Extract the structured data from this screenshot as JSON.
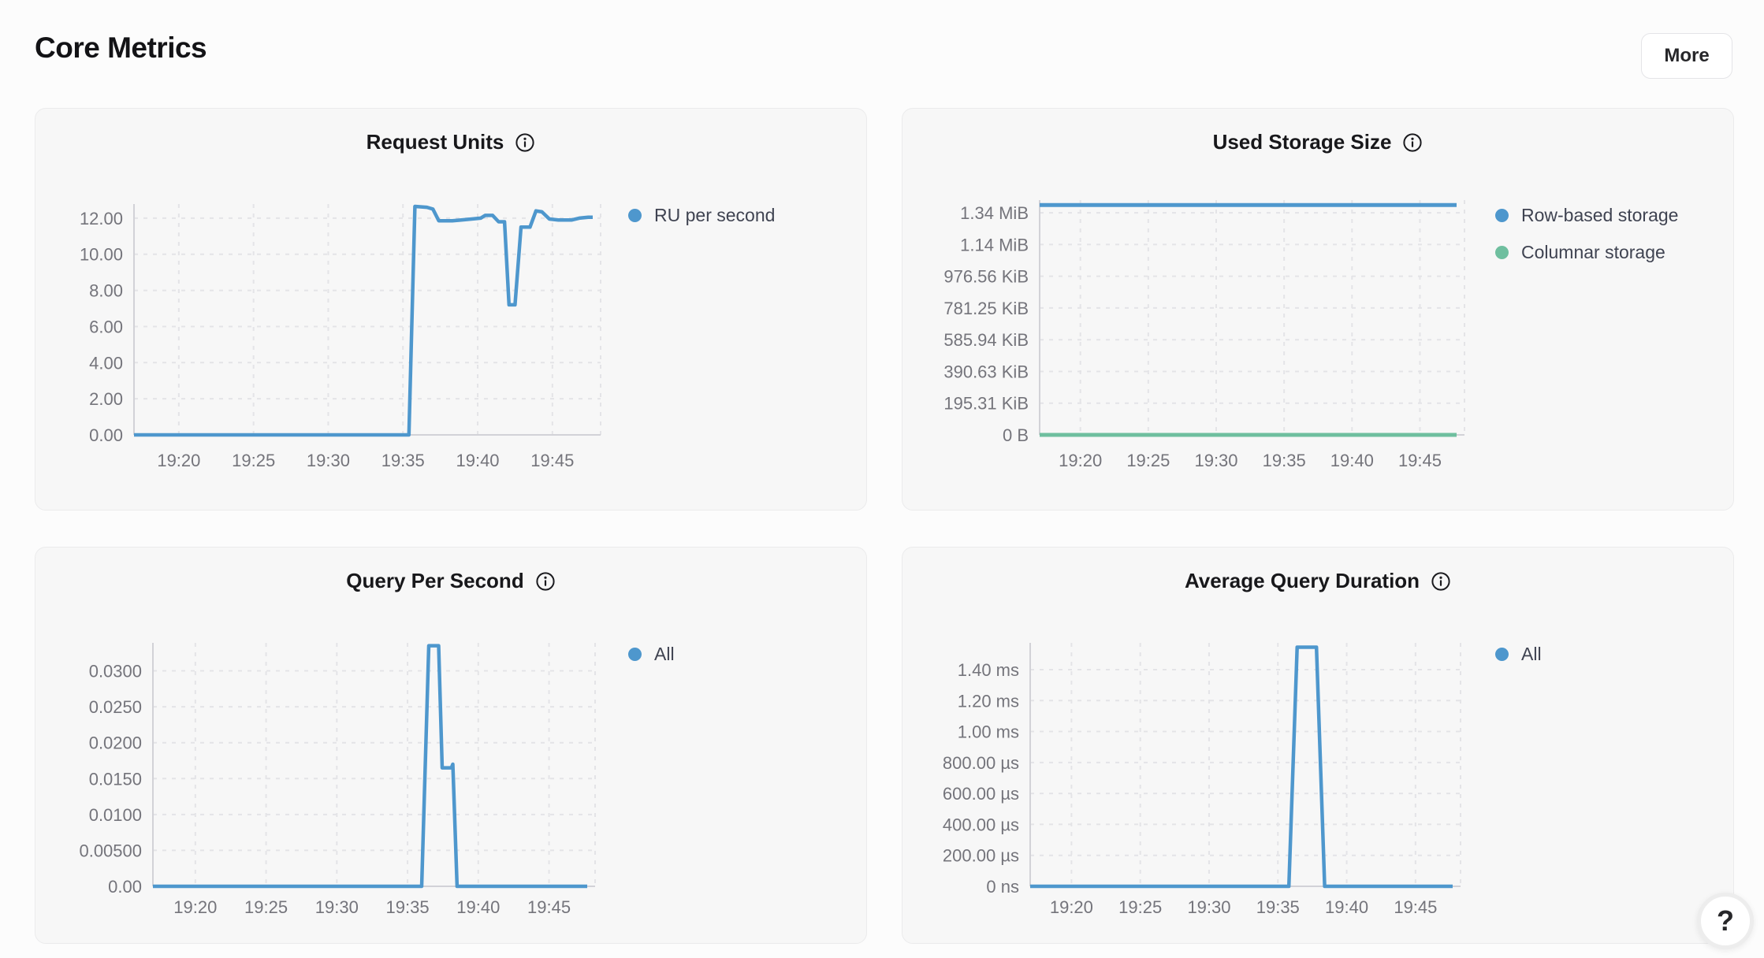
{
  "page": {
    "title": "Core Metrics",
    "more_label": "More",
    "help_label": "?"
  },
  "icons": {
    "chart_title_icon": "info-circle-icon",
    "help_icon": "question-mark"
  },
  "colors": {
    "series_blue": "#4e97cd",
    "series_green": "#6fbf9f",
    "card_bg": "#f7f7f7",
    "page_bg": "#fcfcfc",
    "axis_text": "#74747b",
    "legend_text": "#3f4351"
  },
  "chart_data": [
    {
      "id": "request-units",
      "type": "line",
      "title": "Request Units",
      "legend": [
        {
          "label": "RU per second",
          "color": "#4e97cd"
        }
      ],
      "x_domain": [
        17.0,
        47.7
      ],
      "x_ticks": [
        {
          "t": 20,
          "label": "19:20"
        },
        {
          "t": 25,
          "label": "19:25"
        },
        {
          "t": 30,
          "label": "19:30"
        },
        {
          "t": 35,
          "label": "19:35"
        },
        {
          "t": 40,
          "label": "19:40"
        },
        {
          "t": 45,
          "label": "19:45"
        }
      ],
      "y_ticks": [
        {
          "v": 0,
          "label": "0.00"
        },
        {
          "v": 2,
          "label": "2.00"
        },
        {
          "v": 4,
          "label": "4.00"
        },
        {
          "v": 6,
          "label": "6.00"
        },
        {
          "v": 8,
          "label": "8.00"
        },
        {
          "v": 10,
          "label": "10.00"
        },
        {
          "v": 12,
          "label": "12.00"
        }
      ],
      "y_top": 12.78,
      "series": [
        {
          "name": "RU per second",
          "color": "#4e97cd",
          "width": 4.5,
          "points": [
            [
              17.0,
              0
            ],
            [
              35.4,
              0
            ],
            [
              35.8,
              12.65
            ],
            [
              36.6,
              12.6
            ],
            [
              37.0,
              12.5
            ],
            [
              37.4,
              11.85
            ],
            [
              38.3,
              11.85
            ],
            [
              38.9,
              11.9
            ],
            [
              39.6,
              11.95
            ],
            [
              40.2,
              12.0
            ],
            [
              40.5,
              12.15
            ],
            [
              41.0,
              12.15
            ],
            [
              41.4,
              11.8
            ],
            [
              41.8,
              11.8
            ],
            [
              42.1,
              7.2
            ],
            [
              42.5,
              7.2
            ],
            [
              42.9,
              11.5
            ],
            [
              43.5,
              11.5
            ],
            [
              43.9,
              12.4
            ],
            [
              44.3,
              12.35
            ],
            [
              44.8,
              11.95
            ],
            [
              45.4,
              11.9
            ],
            [
              46.3,
              11.9
            ],
            [
              46.8,
              12.0
            ],
            [
              47.4,
              12.05
            ],
            [
              47.7,
              12.05
            ]
          ]
        }
      ]
    },
    {
      "id": "used-storage",
      "type": "line",
      "title": "Used Storage Size",
      "legend": [
        {
          "label": "Row-based storage",
          "color": "#4e97cd"
        },
        {
          "label": "Columnar storage",
          "color": "#6fbf9f"
        }
      ],
      "x_domain": [
        17.0,
        47.7
      ],
      "x_ticks": [
        {
          "t": 20,
          "label": "19:20"
        },
        {
          "t": 25,
          "label": "19:25"
        },
        {
          "t": 30,
          "label": "19:30"
        },
        {
          "t": 35,
          "label": "19:35"
        },
        {
          "t": 40,
          "label": "19:40"
        },
        {
          "t": 45,
          "label": "19:45"
        }
      ],
      "y_ticks": [
        {
          "v": 0,
          "label": "0 B"
        },
        {
          "v": 200000,
          "label": "195.31 KiB"
        },
        {
          "v": 400000,
          "label": "390.63 KiB"
        },
        {
          "v": 600000,
          "label": "585.94 KiB"
        },
        {
          "v": 800000,
          "label": "781.25 KiB"
        },
        {
          "v": 1000000,
          "label": "976.56 KiB"
        },
        {
          "v": 1200000,
          "label": "1.14 MiB"
        },
        {
          "v": 1400000,
          "label": "1.34 MiB"
        }
      ],
      "y_top": 1480000,
      "series": [
        {
          "name": "Row-based storage",
          "color": "#4e97cd",
          "width": 5,
          "points": [
            [
              17.0,
              1449000
            ],
            [
              47.7,
              1449000
            ]
          ]
        },
        {
          "name": "Columnar storage",
          "color": "#6fbf9f",
          "width": 5,
          "points": [
            [
              17.0,
              0
            ],
            [
              47.7,
              0
            ]
          ]
        }
      ]
    },
    {
      "id": "qps",
      "type": "line",
      "title": "Query Per Second",
      "legend": [
        {
          "label": "All",
          "color": "#4e97cd"
        }
      ],
      "x_domain": [
        17.0,
        47.7
      ],
      "x_ticks": [
        {
          "t": 20,
          "label": "19:20"
        },
        {
          "t": 25,
          "label": "19:25"
        },
        {
          "t": 30,
          "label": "19:30"
        },
        {
          "t": 35,
          "label": "19:35"
        },
        {
          "t": 40,
          "label": "19:40"
        },
        {
          "t": 45,
          "label": "19:45"
        }
      ],
      "y_ticks": [
        {
          "v": 0,
          "label": "0.00"
        },
        {
          "v": 0.005,
          "label": "0.00500"
        },
        {
          "v": 0.01,
          "label": "0.0100"
        },
        {
          "v": 0.015,
          "label": "0.0150"
        },
        {
          "v": 0.02,
          "label": "0.0200"
        },
        {
          "v": 0.025,
          "label": "0.0250"
        },
        {
          "v": 0.03,
          "label": "0.0300"
        }
      ],
      "y_top": 0.0339,
      "series": [
        {
          "name": "All",
          "color": "#4e97cd",
          "width": 4.5,
          "points": [
            [
              17.0,
              0
            ],
            [
              36.0,
              0
            ],
            [
              36.5,
              0.0335
            ],
            [
              37.2,
              0.0335
            ],
            [
              37.45,
              0.0165
            ],
            [
              38.1,
              0.0165
            ],
            [
              38.2,
              0.017
            ],
            [
              38.5,
              0
            ],
            [
              47.7,
              0
            ]
          ]
        }
      ]
    },
    {
      "id": "aqd",
      "type": "line",
      "title": "Average Query Duration",
      "legend": [
        {
          "label": "All",
          "color": "#4e97cd"
        }
      ],
      "x_domain": [
        17.0,
        47.7
      ],
      "x_ticks": [
        {
          "t": 20,
          "label": "19:20"
        },
        {
          "t": 25,
          "label": "19:25"
        },
        {
          "t": 30,
          "label": "19:30"
        },
        {
          "t": 35,
          "label": "19:35"
        },
        {
          "t": 40,
          "label": "19:40"
        },
        {
          "t": 45,
          "label": "19:45"
        }
      ],
      "y_ticks": [
        {
          "v": 0,
          "label": "0 ns"
        },
        {
          "v": 200,
          "label": "200.00 µs"
        },
        {
          "v": 400,
          "label": "400.00 µs"
        },
        {
          "v": 600,
          "label": "600.00 µs"
        },
        {
          "v": 800,
          "label": "800.00 µs"
        },
        {
          "v": 1000,
          "label": "1.00 ms"
        },
        {
          "v": 1200,
          "label": "1.20 ms"
        },
        {
          "v": 1400,
          "label": "1.40 ms"
        }
      ],
      "y_top": 1573,
      "series": [
        {
          "name": "All",
          "color": "#4e97cd",
          "width": 4.5,
          "points": [
            [
              17.0,
              0
            ],
            [
              35.8,
              0
            ],
            [
              36.4,
              1545
            ],
            [
              37.8,
              1545
            ],
            [
              38.4,
              0
            ],
            [
              47.7,
              0
            ]
          ]
        }
      ]
    }
  ]
}
